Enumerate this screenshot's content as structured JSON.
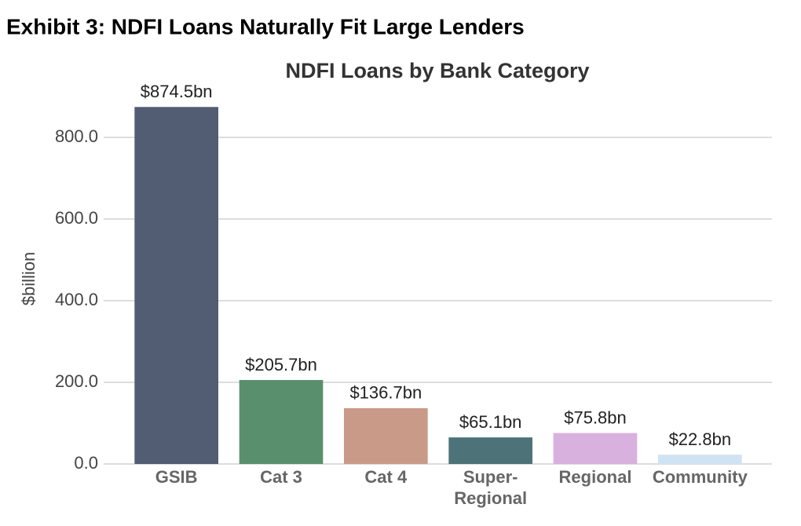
{
  "header": {
    "title": "Exhibit 3: NDFI Loans Naturally Fit Large Lenders"
  },
  "chart_data": {
    "type": "bar",
    "title": "NDFI Loans by Bank Category",
    "y_label": "$billion",
    "categories": [
      "GSIB",
      "Cat 3",
      "Cat 4",
      "Super-\nRegional",
      "Regional",
      "Community"
    ],
    "values": [
      874.5,
      205.7,
      136.7,
      65.1,
      75.8,
      22.8
    ],
    "value_labels": [
      "$874.5bn",
      "$205.7bn",
      "$136.7bn",
      "$65.1bn",
      "$75.8bn",
      "$22.8bn"
    ],
    "colors": [
      "#525c73",
      "#5a8f6e",
      "#c99a88",
      "#4d7378",
      "#d9b1de",
      "#cfe3f3"
    ],
    "ylim": [
      0,
      900
    ],
    "yticks": [
      {
        "value": 0,
        "label": "0.0"
      },
      {
        "value": 200,
        "label": "200.0"
      },
      {
        "value": 400,
        "label": "400.0"
      },
      {
        "value": 600,
        "label": "600.0"
      },
      {
        "value": 800,
        "label": "800.0"
      }
    ],
    "grid": true
  }
}
